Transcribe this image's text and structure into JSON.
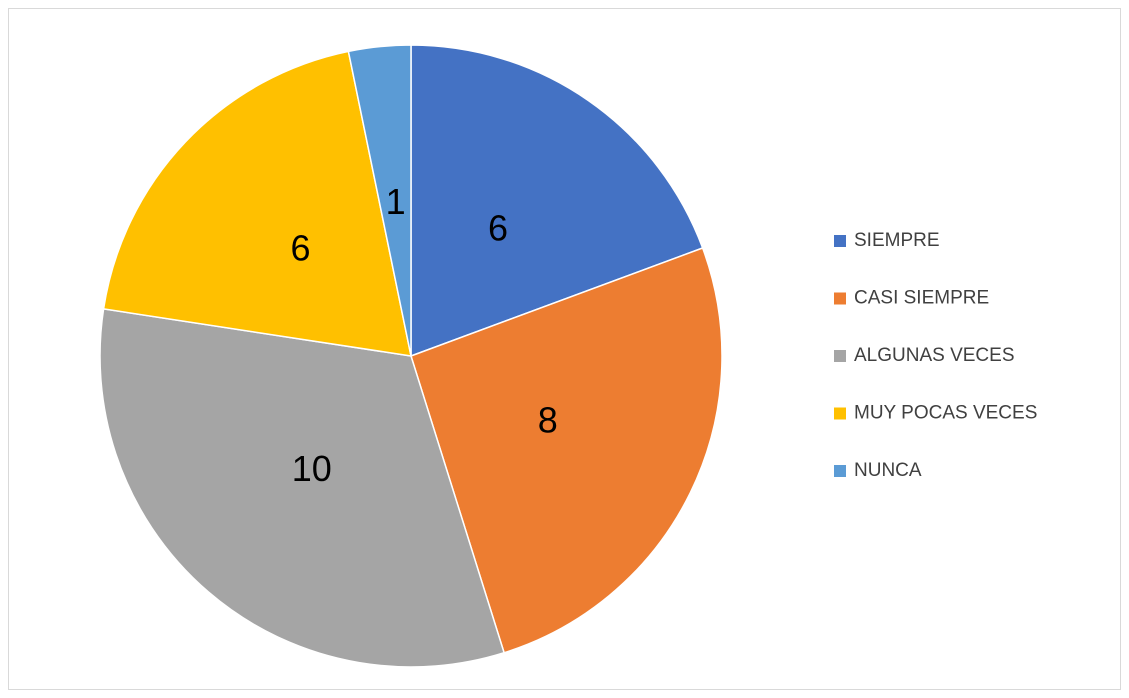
{
  "chart_data": {
    "type": "pie",
    "categories": [
      "SIEMPRE",
      "CASI SIEMPRE",
      "ALGUNAS VECES",
      "MUY POCAS VECES",
      "NUNCA"
    ],
    "values": [
      6,
      8,
      10,
      6,
      1
    ],
    "colors": [
      "#4472c4",
      "#ed7d31",
      "#a5a5a5",
      "#ffc000",
      "#5b9bd5"
    ],
    "legend": "right"
  }
}
